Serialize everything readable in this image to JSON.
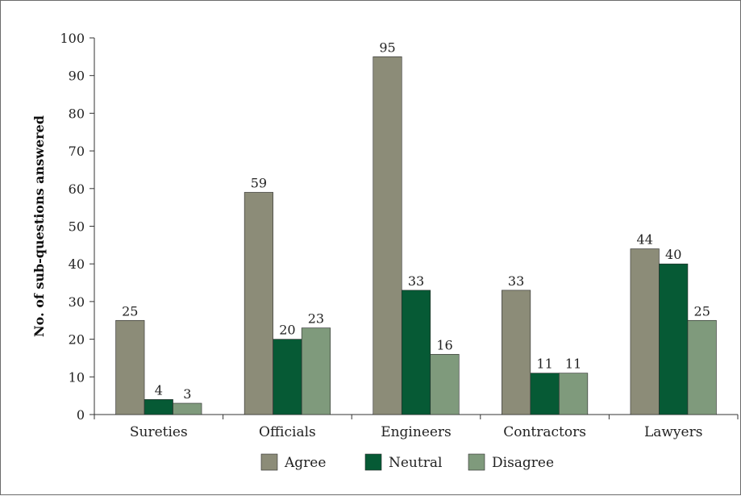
{
  "chart_data": {
    "type": "bar",
    "title": "",
    "xlabel": "",
    "ylabel": "No. of sub-questions answered",
    "ylim": [
      0,
      100
    ],
    "yticks": [
      0,
      10,
      20,
      30,
      40,
      50,
      60,
      70,
      80,
      90,
      100
    ],
    "categories": [
      "Sureties",
      "Officials",
      "Engineers",
      "Contractors",
      "Lawyers"
    ],
    "series": [
      {
        "name": "Agree",
        "color": "#8c8c78",
        "values": [
          25,
          59,
          95,
          33,
          44
        ]
      },
      {
        "name": "Neutral",
        "color": "#065a35",
        "values": [
          4,
          20,
          33,
          11,
          40
        ]
      },
      {
        "name": "Disagree",
        "color": "#7f9a7c",
        "values": [
          3,
          23,
          16,
          11,
          25
        ]
      }
    ],
    "grid": false,
    "legend_position": "bottom"
  }
}
